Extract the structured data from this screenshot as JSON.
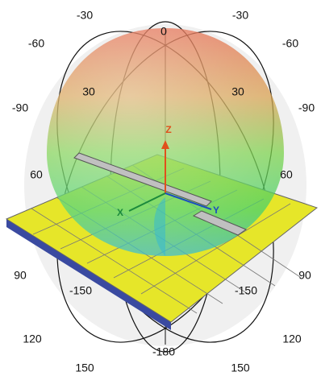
{
  "labels": [
    "-30",
    "-30",
    "0",
    "-60",
    "-60",
    "30",
    "30",
    "-90",
    "-90",
    "60",
    "60",
    "90",
    "90",
    "-150",
    "-150",
    "120",
    "120",
    "-180",
    "150",
    "150"
  ],
  "axes": {
    "z": "Z",
    "x": "X",
    "y": "Y"
  }
}
